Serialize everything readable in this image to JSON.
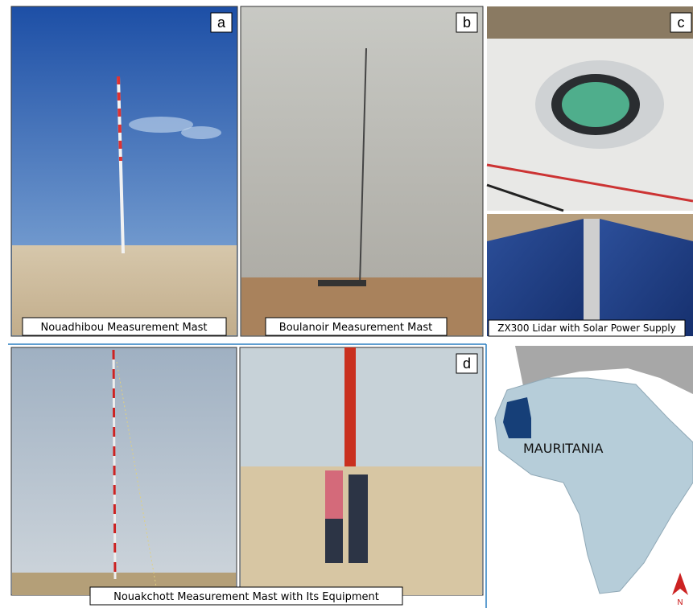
{
  "panels": [
    {
      "label": "a",
      "caption": "Nouadhibou Measurement Mast"
    },
    {
      "label": "b",
      "caption": "Boulanoir Measurement Mast"
    },
    {
      "label": "c",
      "caption": "ZX300 Lidar with Solar Power Supply"
    },
    {
      "label": "d",
      "caption": "Nouakchott Measurement Mast with Its Equipment"
    }
  ],
  "map": {
    "country": "MAURITANIA",
    "north": "N"
  }
}
